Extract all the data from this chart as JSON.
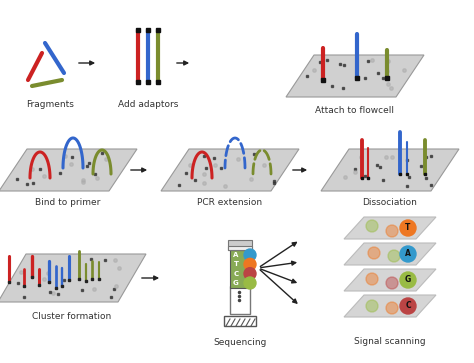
{
  "bg_color": "#ffffff",
  "flowcell_color": "#cccccc",
  "red": "#cc2222",
  "blue": "#3366cc",
  "green": "#7a8c2e",
  "nucleotide_colors": {
    "A": "#3399cc",
    "T": "#ee7722",
    "G": "#99bb44",
    "C": "#bb4444"
  },
  "labels": {
    "fragments": "Fragments",
    "adaptors": "Add adaptors",
    "flowcell": "Attach to flowcell",
    "primer": "Bind to primer",
    "pcr": "PCR extension",
    "dissociation": "Dissociation",
    "cluster": "Cluster formation",
    "sequencing": "Sequencing",
    "signal": "Signal scanning"
  },
  "label_fontsize": 6.5,
  "arrow_color": "#222222"
}
